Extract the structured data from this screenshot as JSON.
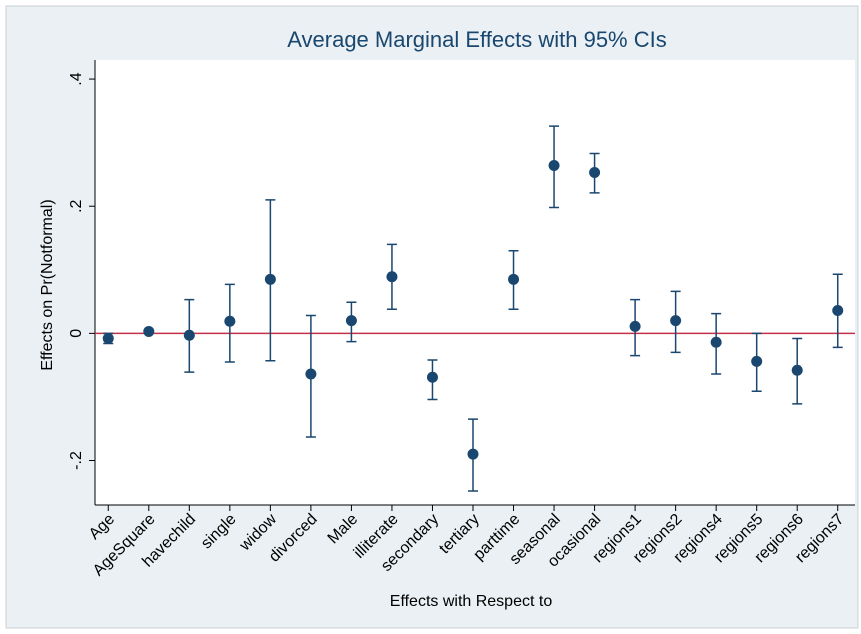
{
  "chart_data": {
    "type": "errorbar",
    "title": "Average Marginal Effects with 95% CIs",
    "x_label": "Effects with Respect to",
    "y_label": "Effects on Pr(Notformal)",
    "categories": [
      "Age",
      "AgeSquare",
      "havechild",
      "single",
      "widow",
      "divorced",
      "Male",
      "illiterate",
      "secondary",
      "tertiary",
      "parttime",
      "seasonal",
      "ocasional",
      "regions1",
      "regions2",
      "regions4",
      "regions5",
      "regions6",
      "regions7"
    ],
    "series": [
      {
        "color": "#1a476f",
        "values": [
          -0.008,
          0.003,
          -0.003,
          0.019,
          0.085,
          -0.064,
          0.02,
          0.089,
          -0.069,
          -0.19,
          0.085,
          0.264,
          0.253,
          0.011,
          0.02,
          -0.014,
          -0.044,
          -0.058,
          0.036
        ],
        "lower": [
          -0.016,
          0.002,
          -0.061,
          -0.045,
          -0.043,
          -0.163,
          -0.013,
          0.038,
          -0.104,
          -0.248,
          0.038,
          0.198,
          0.221,
          -0.035,
          -0.03,
          -0.064,
          -0.091,
          -0.111,
          -0.022
        ],
        "upper": [
          0.0,
          0.004,
          0.053,
          0.077,
          0.21,
          0.028,
          0.049,
          0.14,
          -0.042,
          -0.135,
          0.13,
          0.326,
          0.283,
          0.053,
          0.066,
          0.031,
          0.0,
          -0.008,
          0.093
        ]
      }
    ],
    "ylim": [
      -0.27,
      0.43
    ],
    "yticks": [
      {
        "value": -0.2,
        "label": "-.2"
      },
      0,
      {
        "value": 0.2,
        "label": ".2"
      },
      {
        "value": 0.4,
        "label": ".4"
      }
    ],
    "reference_line": 0,
    "reference_color": "#c4304a"
  }
}
